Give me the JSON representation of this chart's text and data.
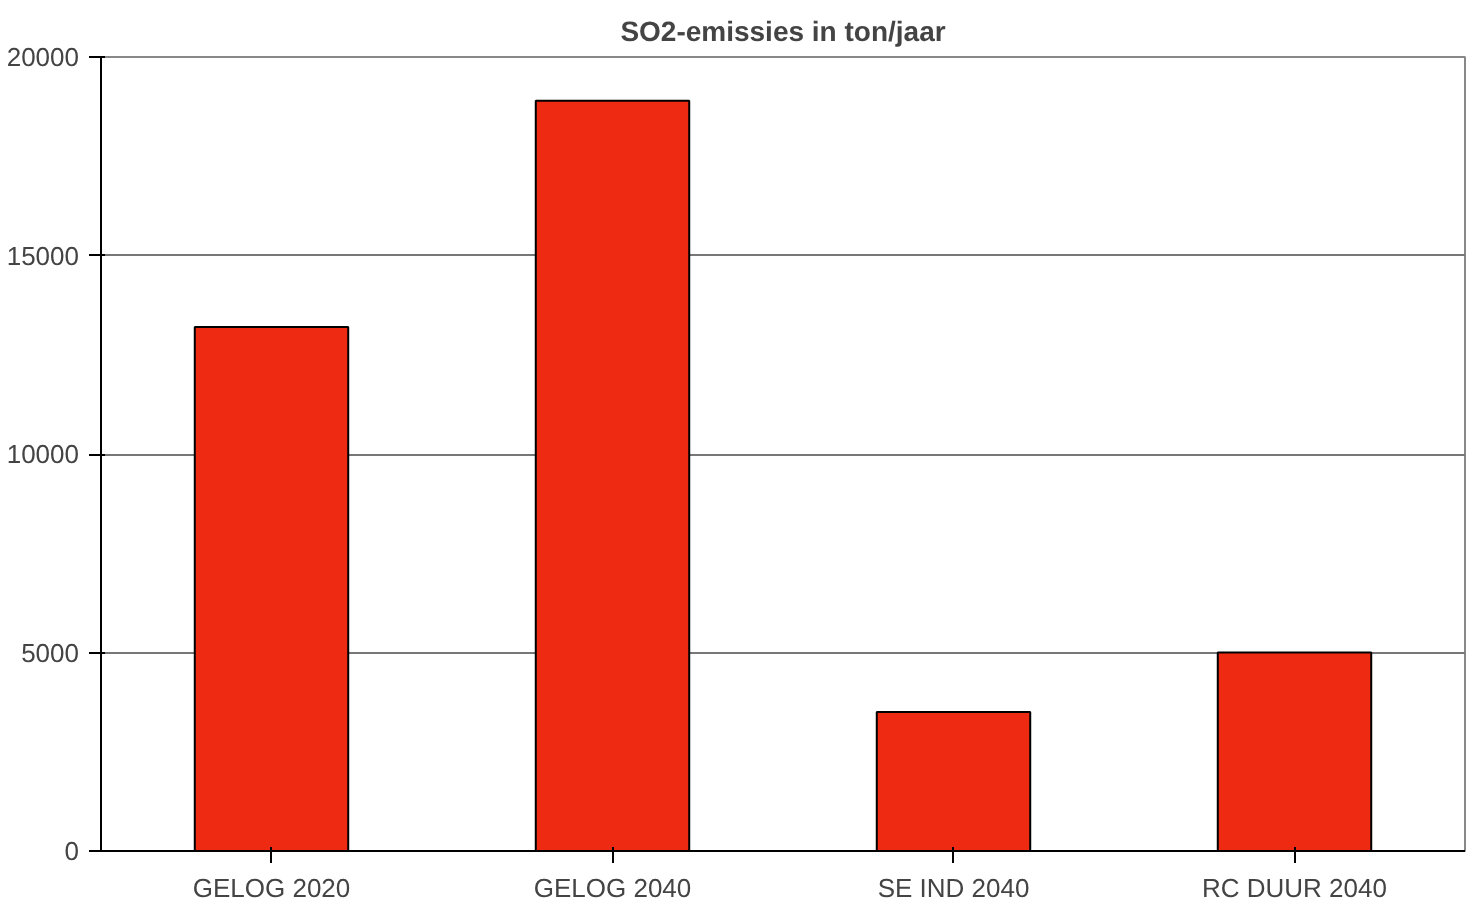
{
  "chart_data": {
    "type": "bar",
    "title": "SO2-emissies in ton/jaar",
    "categories": [
      "GELOG 2020",
      "GELOG 2040",
      "SE IND 2040",
      "RC DUUR 2040"
    ],
    "values": [
      13200,
      18900,
      3500,
      5000
    ],
    "color": "#ee2a12",
    "ylim": [
      0,
      20000
    ],
    "yticks": [
      0,
      5000,
      10000,
      15000,
      20000
    ],
    "grid": "y"
  }
}
